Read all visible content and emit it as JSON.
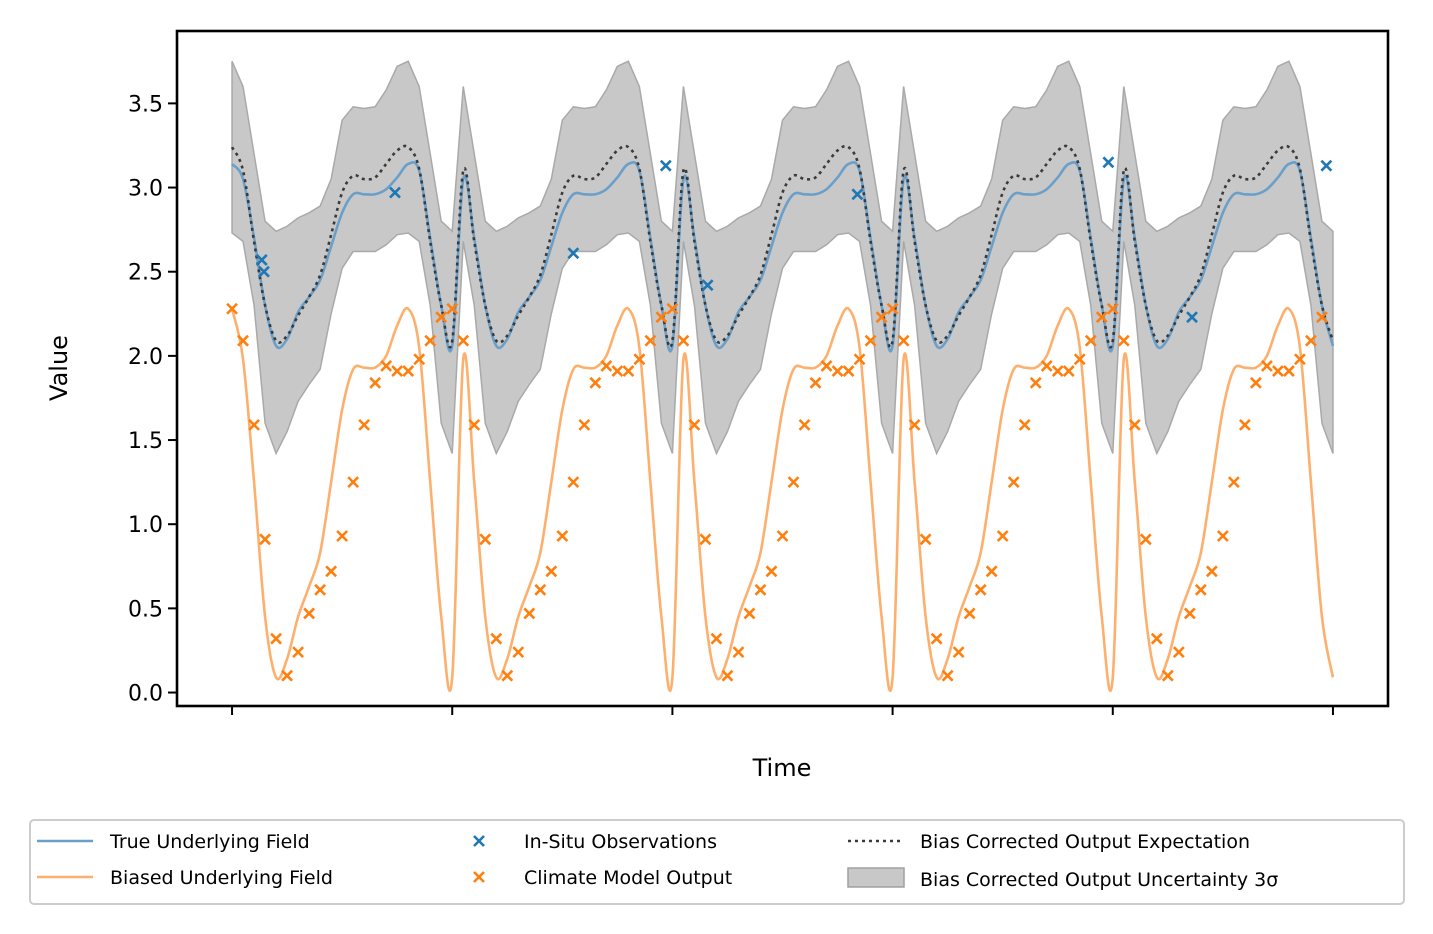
{
  "chart_data": {
    "type": "line",
    "title": "",
    "xlabel": "Time",
    "ylabel": "Value",
    "ylim": [
      -0.08,
      3.93
    ],
    "xlim": [
      -0.25,
      5.25
    ],
    "yticks": [
      "0.0",
      "0.5",
      "1.0",
      "1.5",
      "2.0",
      "2.5",
      "3.0",
      "3.5"
    ],
    "ytick_values": [
      0,
      0.5,
      1.0,
      1.5,
      2.0,
      2.5,
      3.0,
      3.5
    ],
    "xtick_values": [
      0,
      1,
      2,
      3,
      4,
      5
    ],
    "xtick_labels": [
      "",
      "",
      "",
      "",
      "",
      ""
    ],
    "grid": false,
    "legend_position": "below plot, 3 columns",
    "colors": {
      "true_field": "#6a9fca",
      "biased_field": "#fdb06d",
      "insitu": "#1f77b4",
      "climate": "#ff7f0e",
      "expectation": "#3a3a3a",
      "uncertainty": "#c8c8c8"
    },
    "series": [
      {
        "name": "True Underlying Field",
        "kind": "line",
        "x": [
          0.0,
          0.05,
          0.1,
          0.15,
          0.2,
          0.25,
          0.3,
          0.35,
          0.4,
          0.45,
          0.5,
          0.55,
          0.6,
          0.65,
          0.7,
          0.75,
          0.8,
          0.85,
          0.9,
          0.95,
          1.0
        ],
        "y": [
          3.14,
          3.05,
          2.7,
          2.3,
          2.06,
          2.1,
          2.26,
          2.35,
          2.45,
          2.65,
          2.85,
          2.96,
          2.96,
          2.96,
          2.99,
          3.06,
          3.14,
          3.1,
          2.7,
          2.3,
          2.06
        ],
        "periodic": true
      },
      {
        "name": "Biased Underlying Field",
        "kind": "line",
        "x": [
          0.0,
          0.05,
          0.1,
          0.15,
          0.2,
          0.25,
          0.3,
          0.35,
          0.4,
          0.45,
          0.5,
          0.55,
          0.6,
          0.65,
          0.7,
          0.75,
          0.8,
          0.85,
          0.9,
          0.95,
          1.0
        ],
        "y": [
          2.28,
          1.98,
          1.25,
          0.45,
          0.09,
          0.2,
          0.45,
          0.63,
          0.83,
          1.25,
          1.68,
          1.92,
          1.93,
          1.93,
          2.0,
          2.18,
          2.28,
          2.05,
          1.25,
          0.45,
          0.09
        ],
        "periodic": true
      },
      {
        "name": "In-Situ Observations",
        "kind": "scatter",
        "x": [
          0.135,
          0.145,
          0.74,
          1.55,
          1.97,
          2.16,
          2.84,
          3.98,
          4.36,
          4.97
        ],
        "y": [
          2.57,
          2.5,
          2.97,
          2.61,
          3.13,
          2.42,
          2.96,
          3.15,
          2.23,
          3.13
        ]
      },
      {
        "name": "Climate Model Output",
        "kind": "scatter",
        "x": [
          0.0,
          0.05,
          0.1,
          0.15,
          0.2,
          0.25,
          0.3,
          0.35,
          0.4,
          0.45,
          0.5,
          0.55,
          0.6,
          0.65,
          0.7,
          0.75,
          0.8,
          0.85,
          0.9,
          0.95,
          1.0,
          1.05,
          1.1,
          1.15,
          1.2,
          1.25,
          1.3,
          1.35,
          1.4,
          1.45,
          1.5,
          1.55,
          1.6,
          1.65,
          1.7,
          1.75,
          1.8,
          1.85,
          1.9,
          1.95,
          2.0,
          2.05,
          2.1,
          2.15,
          2.2,
          2.25,
          2.3,
          2.35,
          2.4,
          2.45,
          2.5,
          2.55,
          2.6,
          2.65,
          2.7,
          2.75,
          2.8,
          2.85,
          2.9,
          2.95,
          3.0,
          3.05,
          3.1,
          3.15,
          3.2,
          3.25,
          3.3,
          3.35,
          3.4,
          3.45,
          3.5,
          3.55,
          3.6,
          3.65,
          3.7,
          3.75,
          3.8,
          3.85,
          3.9,
          3.95,
          4.0,
          4.05,
          4.1,
          4.15,
          4.2,
          4.25,
          4.3,
          4.35,
          4.4,
          4.45,
          4.5,
          4.55,
          4.6,
          4.65,
          4.7,
          4.75,
          4.8,
          4.85,
          4.9,
          4.95
        ],
        "y": [
          2.28,
          2.09,
          1.59,
          0.91,
          0.32,
          0.1,
          0.24,
          0.47,
          0.61,
          0.72,
          0.93,
          1.25,
          1.59,
          1.84,
          1.94,
          1.91,
          1.91,
          1.98,
          2.09,
          2.23,
          2.28,
          2.09,
          1.59,
          0.91,
          0.32,
          0.1,
          0.24,
          0.47,
          0.61,
          0.72,
          0.93,
          1.25,
          1.59,
          1.84,
          1.94,
          1.91,
          1.91,
          1.98,
          2.09,
          2.23,
          2.28,
          2.09,
          1.59,
          0.91,
          0.32,
          0.1,
          0.24,
          0.47,
          0.61,
          0.72,
          0.93,
          1.25,
          1.59,
          1.84,
          1.94,
          1.91,
          1.91,
          1.98,
          2.09,
          2.23,
          2.28,
          2.09,
          1.59,
          0.91,
          0.32,
          0.1,
          0.24,
          0.47,
          0.61,
          0.72,
          0.93,
          1.25,
          1.59,
          1.84,
          1.94,
          1.91,
          1.91,
          1.98,
          2.09,
          2.23,
          2.28,
          2.09,
          1.59,
          0.91,
          0.32,
          0.1,
          0.24,
          0.47,
          0.61,
          0.72,
          0.93,
          1.25,
          1.59,
          1.84,
          1.94,
          1.91,
          1.91,
          1.98,
          2.09,
          2.23
        ]
      },
      {
        "name": "Bias Corrected Output Expectation",
        "kind": "line",
        "x": [
          0.0,
          0.05,
          0.1,
          0.15,
          0.2,
          0.25,
          0.3,
          0.35,
          0.4,
          0.45,
          0.5,
          0.55,
          0.6,
          0.65,
          0.7,
          0.75,
          0.8,
          0.85,
          0.9,
          0.95,
          1.0
        ],
        "y": [
          3.24,
          3.1,
          2.68,
          2.3,
          2.09,
          2.12,
          2.24,
          2.35,
          2.48,
          2.72,
          2.97,
          3.07,
          3.05,
          3.06,
          3.14,
          3.22,
          3.24,
          3.11,
          2.68,
          2.3,
          2.09
        ],
        "periodic": true
      },
      {
        "name": "Bias Corrected Output Uncertainty 3σ",
        "kind": "band",
        "x": [
          0.0,
          0.05,
          0.1,
          0.15,
          0.2,
          0.25,
          0.3,
          0.35,
          0.4,
          0.45,
          0.5,
          0.55,
          0.6,
          0.65,
          0.7,
          0.75,
          0.8,
          0.85,
          0.9,
          0.95,
          1.0
        ],
        "upper": [
          3.75,
          3.6,
          3.2,
          2.8,
          2.74,
          2.77,
          2.82,
          2.85,
          2.89,
          3.05,
          3.4,
          3.48,
          3.47,
          3.48,
          3.58,
          3.72,
          3.75,
          3.6,
          3.2,
          2.8,
          2.74
        ],
        "lower": [
          2.73,
          2.68,
          2.3,
          1.6,
          1.42,
          1.55,
          1.73,
          1.83,
          1.92,
          2.25,
          2.52,
          2.62,
          2.62,
          2.62,
          2.66,
          2.72,
          2.73,
          2.68,
          2.3,
          1.6,
          1.42
        ],
        "periodic": true
      }
    ]
  },
  "legend": {
    "items": [
      {
        "label": "True Underlying Field"
      },
      {
        "label": "Biased Underlying Field"
      },
      {
        "label": "In-Situ Observations"
      },
      {
        "label": "Climate Model Output"
      },
      {
        "label": "Bias Corrected Output Expectation"
      },
      {
        "label": "Bias Corrected Output Uncertainty 3σ"
      }
    ]
  }
}
